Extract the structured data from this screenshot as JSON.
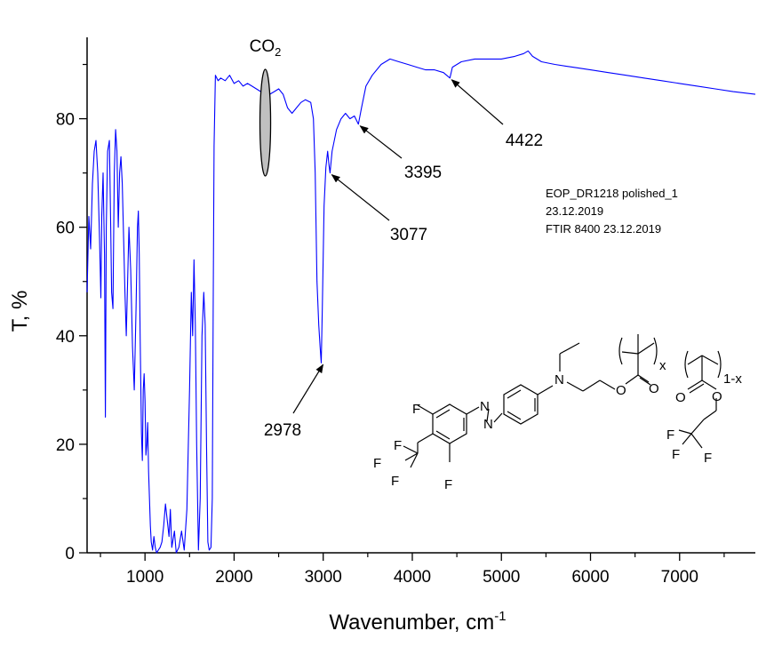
{
  "chart_data": {
    "type": "line",
    "title": "",
    "xlabel": "Wavenumber, cm",
    "xlabel_sup": "-1",
    "ylabel": "T, %",
    "xlim": [
      350,
      7850
    ],
    "ylim": [
      0,
      95
    ],
    "x_ticks": [
      1000,
      2000,
      3000,
      4000,
      5000,
      6000,
      7000
    ],
    "y_ticks": [
      0,
      20,
      40,
      60,
      80
    ],
    "grid": false,
    "series": [
      {
        "color": "#0000ff",
        "points": [
          [
            350,
            48
          ],
          [
            370,
            62
          ],
          [
            390,
            56
          ],
          [
            410,
            68
          ],
          [
            430,
            74
          ],
          [
            450,
            76
          ],
          [
            470,
            70
          ],
          [
            490,
            58
          ],
          [
            505,
            47
          ],
          [
            515,
            62
          ],
          [
            530,
            70
          ],
          [
            545,
            55
          ],
          [
            555,
            25
          ],
          [
            565,
            60
          ],
          [
            580,
            74
          ],
          [
            600,
            76
          ],
          [
            615,
            60
          ],
          [
            625,
            48
          ],
          [
            640,
            45
          ],
          [
            655,
            70
          ],
          [
            670,
            78
          ],
          [
            685,
            74
          ],
          [
            700,
            60
          ],
          [
            715,
            70
          ],
          [
            730,
            73
          ],
          [
            745,
            68
          ],
          [
            760,
            58
          ],
          [
            775,
            48
          ],
          [
            790,
            40
          ],
          [
            805,
            50
          ],
          [
            820,
            60
          ],
          [
            840,
            52
          ],
          [
            860,
            38
          ],
          [
            880,
            30
          ],
          [
            900,
            45
          ],
          [
            915,
            60
          ],
          [
            925,
            63
          ],
          [
            935,
            55
          ],
          [
            945,
            40
          ],
          [
            960,
            22
          ],
          [
            970,
            17
          ],
          [
            980,
            30
          ],
          [
            990,
            33
          ],
          [
            1000,
            28
          ],
          [
            1010,
            18
          ],
          [
            1020,
            20
          ],
          [
            1030,
            24
          ],
          [
            1040,
            15
          ],
          [
            1050,
            10
          ],
          [
            1060,
            5
          ],
          [
            1070,
            2
          ],
          [
            1085,
            0.5
          ],
          [
            1100,
            3
          ],
          [
            1115,
            1
          ],
          [
            1130,
            0
          ],
          [
            1150,
            0.5
          ],
          [
            1170,
            1
          ],
          [
            1190,
            2
          ],
          [
            1210,
            5
          ],
          [
            1230,
            9
          ],
          [
            1250,
            6
          ],
          [
            1270,
            3
          ],
          [
            1285,
            8
          ],
          [
            1300,
            1
          ],
          [
            1330,
            4
          ],
          [
            1350,
            0
          ],
          [
            1380,
            1
          ],
          [
            1410,
            4
          ],
          [
            1440,
            0.5
          ],
          [
            1470,
            8
          ],
          [
            1500,
            30
          ],
          [
            1520,
            48
          ],
          [
            1535,
            40
          ],
          [
            1550,
            54
          ],
          [
            1565,
            42
          ],
          [
            1580,
            20
          ],
          [
            1600,
            0.5
          ],
          [
            1620,
            10
          ],
          [
            1640,
            40
          ],
          [
            1660,
            48
          ],
          [
            1675,
            42
          ],
          [
            1690,
            20
          ],
          [
            1705,
            2
          ],
          [
            1720,
            0.5
          ],
          [
            1740,
            1
          ],
          [
            1755,
            10
          ],
          [
            1765,
            45
          ],
          [
            1775,
            75
          ],
          [
            1790,
            88
          ],
          [
            1820,
            87
          ],
          [
            1850,
            87.5
          ],
          [
            1900,
            87
          ],
          [
            1950,
            88
          ],
          [
            2000,
            86.5
          ],
          [
            2050,
            87
          ],
          [
            2100,
            86
          ],
          [
            2150,
            86.5
          ],
          [
            2200,
            86
          ],
          [
            2250,
            85.5
          ],
          [
            2300,
            85
          ],
          [
            2350,
            84
          ],
          [
            2400,
            84.5
          ],
          [
            2450,
            85
          ],
          [
            2500,
            85.5
          ],
          [
            2550,
            84.5
          ],
          [
            2600,
            82
          ],
          [
            2650,
            81
          ],
          [
            2700,
            82
          ],
          [
            2750,
            83
          ],
          [
            2800,
            83.5
          ],
          [
            2860,
            83
          ],
          [
            2890,
            80
          ],
          [
            2910,
            70
          ],
          [
            2930,
            50
          ],
          [
            2950,
            42
          ],
          [
            2965,
            38
          ],
          [
            2978,
            35
          ],
          [
            2990,
            45
          ],
          [
            3010,
            64
          ],
          [
            3030,
            71
          ],
          [
            3050,
            74
          ],
          [
            3065,
            71.5
          ],
          [
            3077,
            70
          ],
          [
            3100,
            74
          ],
          [
            3150,
            78
          ],
          [
            3200,
            80
          ],
          [
            3250,
            81
          ],
          [
            3300,
            80
          ],
          [
            3350,
            80.5
          ],
          [
            3395,
            79
          ],
          [
            3430,
            82
          ],
          [
            3480,
            86
          ],
          [
            3550,
            88
          ],
          [
            3650,
            90
          ],
          [
            3750,
            91
          ],
          [
            3850,
            90.5
          ],
          [
            3950,
            90
          ],
          [
            4050,
            89.5
          ],
          [
            4150,
            89
          ],
          [
            4250,
            89
          ],
          [
            4350,
            88.5
          ],
          [
            4422,
            87.5
          ],
          [
            4450,
            89.5
          ],
          [
            4550,
            90.5
          ],
          [
            4700,
            91
          ],
          [
            4850,
            91
          ],
          [
            5000,
            91
          ],
          [
            5150,
            91.5
          ],
          [
            5250,
            92
          ],
          [
            5300,
            92.5
          ],
          [
            5350,
            91.5
          ],
          [
            5450,
            90.5
          ],
          [
            5600,
            90
          ],
          [
            5800,
            89.5
          ],
          [
            6000,
            89
          ],
          [
            6200,
            88.5
          ],
          [
            6400,
            88
          ],
          [
            6600,
            87.5
          ],
          [
            6800,
            87
          ],
          [
            7000,
            86.5
          ],
          [
            7200,
            86
          ],
          [
            7400,
            85.5
          ],
          [
            7600,
            85
          ],
          [
            7850,
            84.5
          ]
        ]
      }
    ],
    "annotations": [
      {
        "text": "2978",
        "x": 2978,
        "y": 35
      },
      {
        "text": "3077",
        "x": 3077,
        "y": 70
      },
      {
        "text": "3395",
        "x": 3395,
        "y": 79
      },
      {
        "text": "4422",
        "x": 4422,
        "y": 87.5
      }
    ],
    "co2_label": "CO",
    "co2_sub": "2",
    "co2_x": 2350,
    "info_lines": [
      "EOP_DR1218 polished_1",
      "23.12.2019",
      "FTIR 8400 23.12.2019"
    ],
    "molecule_labels": {
      "fluorine": "F",
      "nitrogen": "N",
      "oxygen": "O",
      "sub_x": "x",
      "sub_1x": "1-x"
    }
  }
}
